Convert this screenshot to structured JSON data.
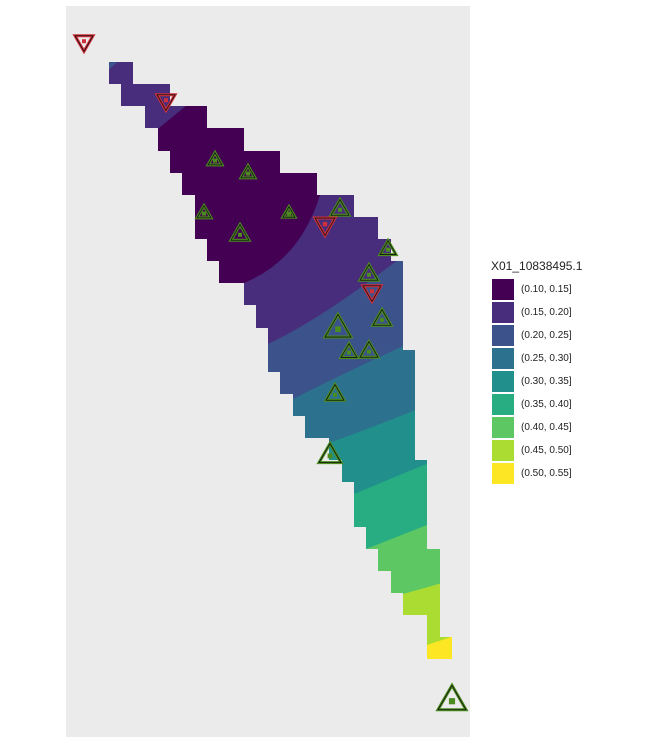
{
  "legend": {
    "title": "X01_10838495.1",
    "items": [
      {
        "label": "(0.10, 0.15]",
        "color": "#440154"
      },
      {
        "label": "(0.15, 0.20]",
        "color": "#472D7B"
      },
      {
        "label": "(0.20, 0.25]",
        "color": "#3B528B"
      },
      {
        "label": "(0.25, 0.30]",
        "color": "#2C728E"
      },
      {
        "label": "(0.30, 0.35]",
        "color": "#21908C"
      },
      {
        "label": "(0.35, 0.40]",
        "color": "#27AD81"
      },
      {
        "label": "(0.40, 0.45]",
        "color": "#5DC863"
      },
      {
        "label": "(0.45, 0.50]",
        "color": "#AADC32"
      },
      {
        "label": "(0.50, 0.55]",
        "color": "#FDE725"
      }
    ]
  },
  "panel_background": "#EBEBEB",
  "marker_colors": {
    "up": "#4B8C1E",
    "down": "#D0303A"
  },
  "markers": {
    "up_triangle_count": 15,
    "down_triangle_count": 4
  }
}
